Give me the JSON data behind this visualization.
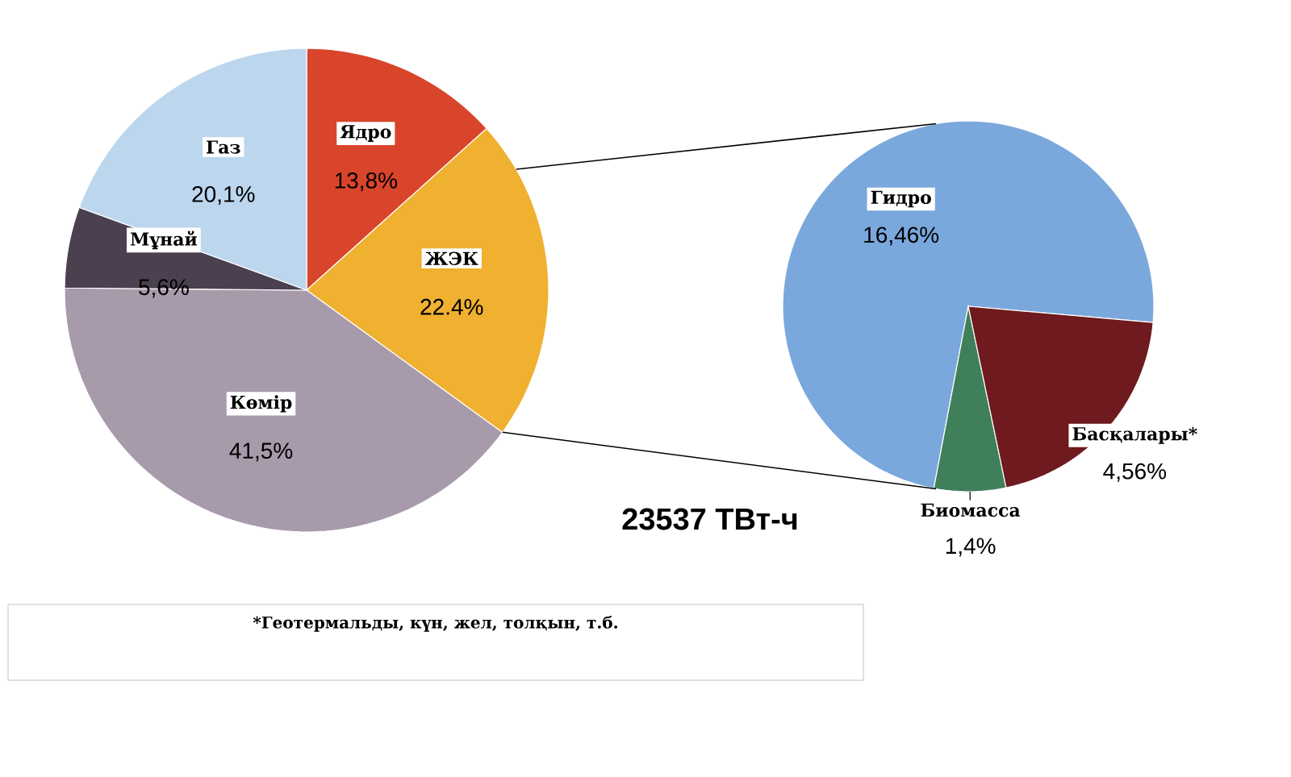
{
  "chart_data": [
    {
      "type": "pie",
      "title": "23537 ТВт-ч",
      "categories": [
        "Ядро",
        "ЖЭК",
        "Көмір",
        "Мұнай",
        "Газ"
      ],
      "values": [
        13.8,
        22.4,
        41.5,
        5.6,
        20.1
      ],
      "colors": [
        "#d9452b",
        "#f0b030",
        "#a79aab",
        "#4a4050",
        "#bcd6ee"
      ],
      "value_labels": [
        "13,8%",
        "22.4%",
        "41,5%",
        "5,6%",
        "20,1%"
      ]
    },
    {
      "type": "pie",
      "categories": [
        "Гидро",
        "Биомасса",
        "Басқалары*"
      ],
      "values": [
        16.46,
        1.4,
        4.56
      ],
      "colors": [
        "#7aa8dc",
        "#3f7f5a",
        "#6e1a1e"
      ],
      "value_labels": [
        "16,46%",
        "1,4%",
        "4,56%"
      ],
      "annotations": [
        "*Геотермальды, күн, жел, толқын, т.б."
      ]
    }
  ]
}
